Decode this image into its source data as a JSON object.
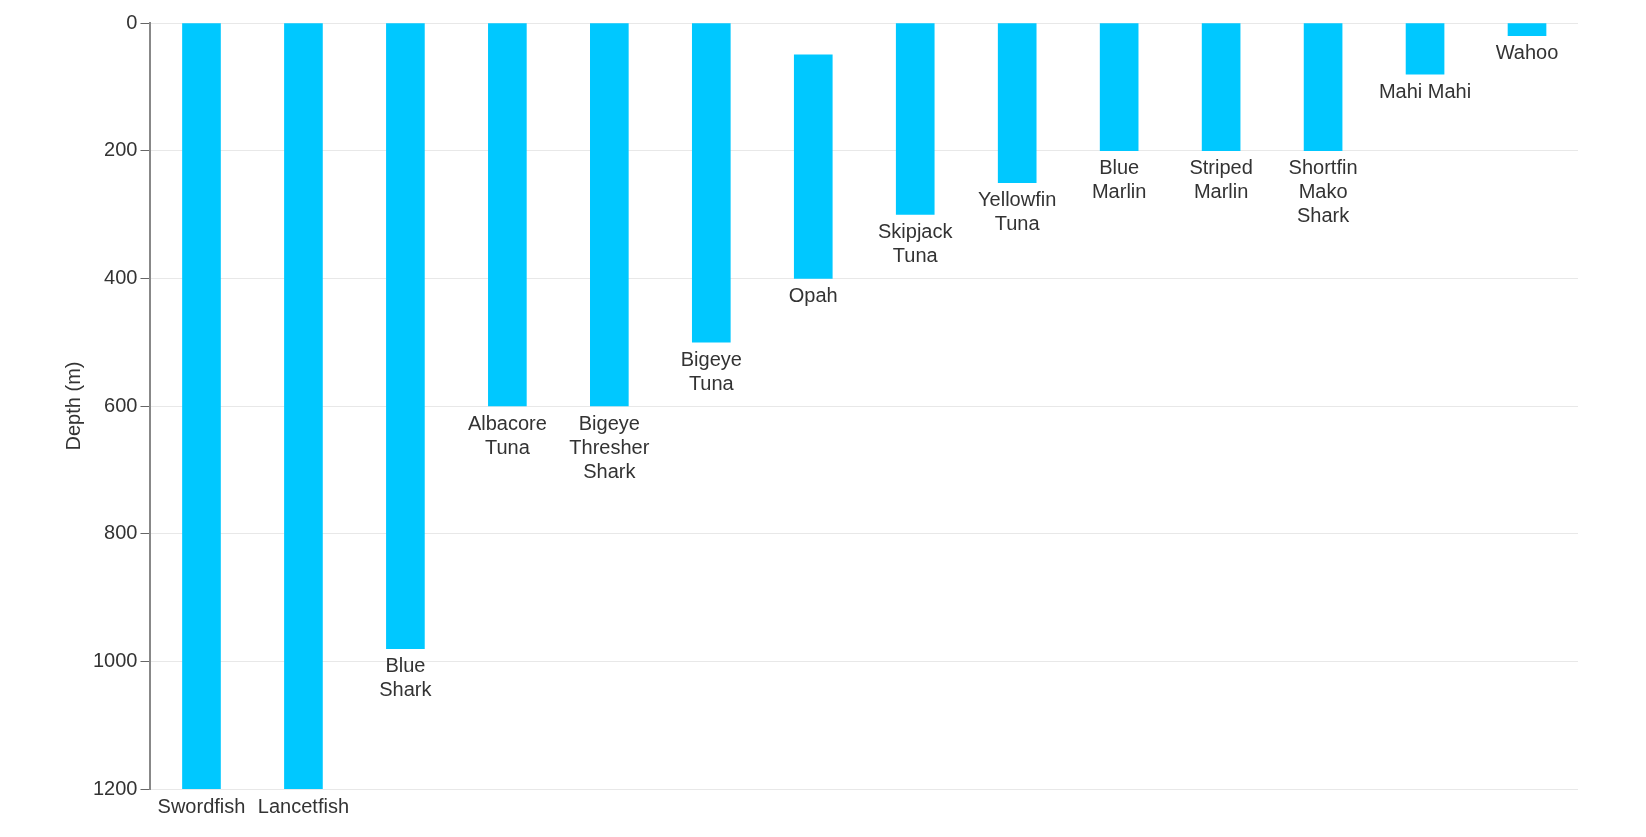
{
  "chart_data": {
    "type": "bar",
    "ylabel": "Depth (m)",
    "categories": [
      "Swordfish",
      "Lancetfish",
      "Blue Shark",
      "Albacore Tuna",
      "Bigeye Thresher Shark",
      "Bigeye Tuna",
      "Opah",
      "Skipjack Tuna",
      "Yellowfin Tuna",
      "Blue Marlin",
      "Striped Marlin",
      "Shortfin Mako Shark",
      "Mahi Mahi",
      "Wahoo"
    ],
    "base": [
      0,
      0,
      0,
      0,
      0,
      0,
      50,
      0,
      0,
      0,
      0,
      0,
      0,
      0
    ],
    "values": [
      1200,
      1200,
      980,
      600,
      600,
      500,
      350,
      300,
      250,
      200,
      200,
      200,
      80,
      20
    ],
    "color": "#00c8ff",
    "ylim": [
      1200,
      0
    ],
    "yticks": [
      0,
      200,
      400,
      600,
      800,
      1000,
      1200
    ],
    "grid": "y",
    "legend": false
  }
}
